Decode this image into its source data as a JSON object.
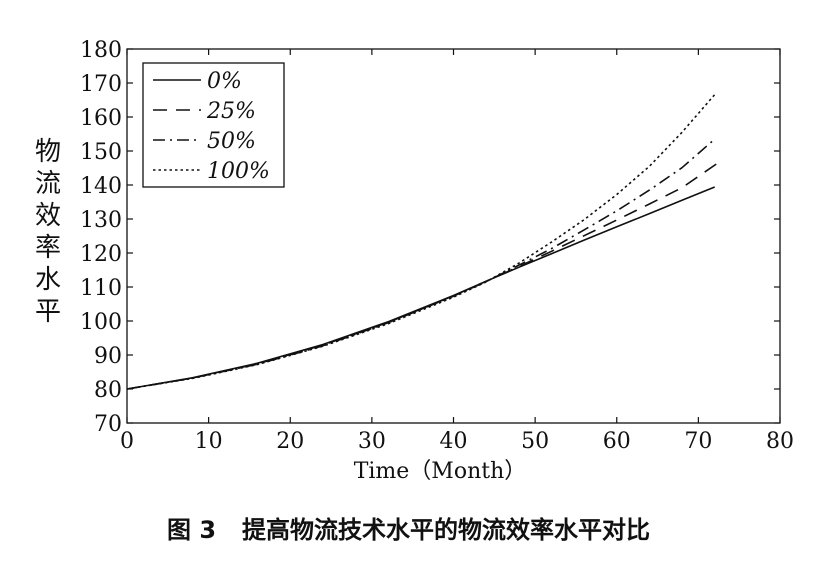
{
  "chart_data": {
    "type": "line",
    "title": "",
    "xlabel": "Time（Month）",
    "ylabel": "物流效率水平",
    "xlim": [
      0,
      80
    ],
    "ylim": [
      70,
      180
    ],
    "xticks": [
      0,
      10,
      20,
      30,
      40,
      50,
      60,
      70,
      80
    ],
    "yticks": [
      70,
      80,
      90,
      100,
      110,
      120,
      130,
      140,
      150,
      160,
      170,
      180
    ],
    "grid": false,
    "legend_position": "top-left",
    "series": [
      {
        "name": "0%",
        "style": "solid",
        "x": [
          0,
          8,
          16,
          24,
          32,
          40,
          44,
          48,
          52,
          56,
          60,
          64,
          68,
          72
        ],
        "y": [
          80,
          83.3,
          87.6,
          93.1,
          99.8,
          107.5,
          111.7,
          115.8,
          119.8,
          123.8,
          127.7,
          131.6,
          135.5,
          139.4
        ]
      },
      {
        "name": "25%",
        "style": "dashed",
        "x": [
          0,
          8,
          16,
          24,
          32,
          40,
          44,
          48,
          52,
          56,
          60,
          64,
          68,
          73
        ],
        "y": [
          80,
          83.2,
          87.4,
          92.9,
          99.6,
          107.4,
          111.7,
          116,
          120.5,
          125.1,
          129.7,
          134.4,
          139.2,
          147.5
        ]
      },
      {
        "name": "50%",
        "style": "dashdot",
        "x": [
          0,
          8,
          16,
          24,
          32,
          40,
          44,
          48,
          52,
          56,
          60,
          64,
          68,
          72
        ],
        "y": [
          80,
          83.2,
          87.3,
          92.7,
          99.5,
          107.3,
          111.6,
          116.4,
          121.3,
          126.8,
          132.4,
          138.5,
          145.1,
          153.5
        ]
      },
      {
        "name": "100%",
        "style": "dotted",
        "x": [
          0,
          8,
          16,
          24,
          32,
          40,
          44,
          48,
          52,
          56,
          60,
          64,
          68,
          72
        ],
        "y": [
          80,
          83.1,
          87.2,
          92.6,
          99.2,
          107,
          111.5,
          117,
          123.2,
          129.8,
          137.2,
          145.5,
          155.5,
          166.6
        ]
      }
    ]
  },
  "caption": {
    "figure_number": "图 3",
    "text": "提高物流技术水平的物流效率水平对比"
  }
}
